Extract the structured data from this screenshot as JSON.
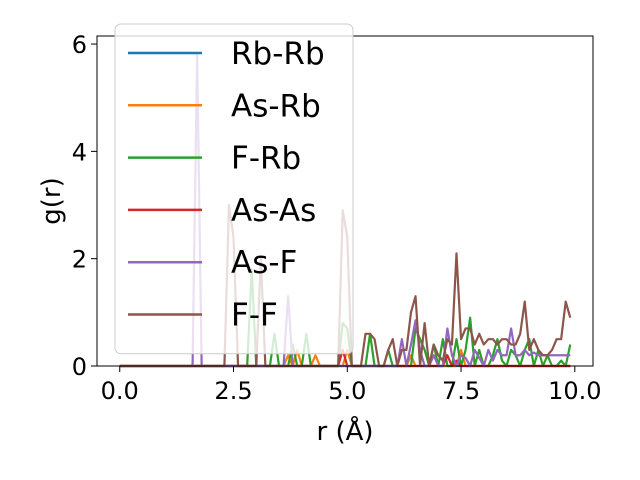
{
  "chart_data": {
    "type": "line",
    "xlabel": "r (Å)",
    "ylabel": "g(r)",
    "xlim": [
      -0.5,
      10.4
    ],
    "ylim": [
      0,
      6.15
    ],
    "xticks": [
      0.0,
      2.5,
      5.0,
      7.5,
      10.0
    ],
    "xtick_labels": [
      "0.0",
      "2.5",
      "5.0",
      "7.5",
      "10.0"
    ],
    "yticks": [
      0,
      2,
      4,
      6
    ],
    "ytick_labels": [
      "0",
      "2",
      "4",
      "6"
    ],
    "grid": false,
    "legend_position": "top-left",
    "x_start": 0.0,
    "x_step": 0.1,
    "series": [
      {
        "name": "Rb-Rb",
        "color": "#1f77b4",
        "values": [
          0,
          0,
          0,
          0,
          0,
          0,
          0,
          0,
          0,
          0,
          0,
          0,
          0,
          0,
          0,
          0,
          0,
          0,
          0,
          0,
          0,
          0,
          0,
          0,
          0,
          0,
          0,
          0,
          0,
          0,
          0,
          0,
          0,
          0,
          0,
          0,
          0,
          0,
          0,
          0,
          0,
          0,
          0,
          0,
          0,
          0,
          0,
          0,
          0,
          0,
          0,
          0,
          0,
          0,
          0,
          0,
          0,
          0,
          0,
          0,
          0,
          0,
          0,
          0,
          0,
          0,
          0,
          0,
          0,
          0,
          0,
          0,
          0,
          0,
          0,
          0,
          0,
          0,
          0,
          0,
          0,
          0,
          0,
          0,
          0,
          0,
          0,
          0,
          0,
          0,
          0,
          0,
          0,
          0,
          0,
          0,
          0,
          0,
          0,
          0
        ]
      },
      {
        "name": "As-Rb",
        "color": "#ff7f0e",
        "values": [
          0,
          0,
          0,
          0,
          0,
          0,
          0,
          0,
          0,
          0,
          0,
          0,
          0,
          0,
          0,
          0,
          0,
          0,
          0,
          0,
          0,
          0,
          0,
          0,
          0,
          0,
          0,
          0,
          0,
          0,
          0,
          0,
          0,
          0,
          0,
          0,
          0,
          0.2,
          0,
          0.3,
          0,
          0,
          0,
          0.2,
          0,
          0,
          0,
          0,
          0,
          0,
          0.3,
          0,
          0,
          0,
          0,
          0,
          0,
          0,
          0,
          0,
          0,
          0,
          0,
          0,
          0.2,
          0,
          0,
          0,
          0,
          0,
          0,
          0,
          0,
          0,
          0,
          0.3,
          0,
          0,
          0,
          0,
          0,
          0,
          0,
          0,
          0,
          0,
          0,
          0,
          0,
          0,
          0,
          0,
          0,
          0,
          0,
          0,
          0,
          0,
          0,
          0
        ]
      },
      {
        "name": "F-Rb",
        "color": "#2ca02c",
        "values": [
          0,
          0,
          0,
          0,
          0,
          0,
          0,
          0,
          0,
          0,
          0,
          0,
          0,
          0,
          0,
          0,
          0,
          0,
          0,
          0,
          0,
          0,
          0,
          0,
          0,
          0,
          0,
          0,
          0,
          1.8,
          0,
          0,
          0,
          0,
          0.6,
          0,
          0,
          0,
          0.4,
          0,
          0,
          0.6,
          0,
          0,
          0,
          0,
          0,
          0,
          0,
          0.8,
          0.7,
          0,
          0,
          0,
          0,
          0.6,
          0,
          0,
          0,
          0.3,
          0,
          0,
          0,
          0,
          0,
          0.7,
          0.5,
          0.3,
          0,
          0.4,
          0,
          0.5,
          0,
          0,
          0.5,
          0,
          0.3,
          0.9,
          0,
          0.3,
          0,
          0,
          0.2,
          0.5,
          0.1,
          0,
          0.3,
          0.2,
          0,
          0.3,
          0.5,
          0,
          0.3,
          0,
          0.2,
          0,
          0,
          0.1,
          0,
          0.4
        ]
      },
      {
        "name": "As-As",
        "color": "#d62728",
        "values": [
          0,
          0,
          0,
          0,
          0,
          0,
          0,
          0,
          0,
          0,
          0,
          0,
          0,
          0,
          0,
          0,
          0,
          0,
          0,
          0,
          0,
          0,
          0,
          0,
          0,
          0,
          0,
          0,
          0,
          0,
          0,
          0,
          0,
          0,
          0,
          0,
          0,
          0,
          0,
          0,
          0,
          0,
          0,
          0,
          0,
          0,
          0,
          0,
          0,
          0.3,
          0,
          0,
          0,
          0,
          0,
          0,
          0,
          0,
          0,
          0,
          0,
          0,
          0,
          0,
          0,
          0,
          0,
          0,
          0,
          0,
          0,
          0,
          0.2,
          0,
          0.1,
          0,
          0,
          0,
          0,
          0,
          0,
          0,
          0,
          0,
          0,
          0,
          0,
          0,
          0,
          0,
          0,
          0,
          0,
          0,
          0,
          0,
          0,
          0,
          0,
          0
        ]
      },
      {
        "name": "As-F",
        "color": "#9467bd",
        "values": [
          0,
          0,
          0,
          0,
          0,
          0,
          0,
          0,
          0,
          0,
          0,
          0,
          0,
          0,
          0,
          0,
          0,
          5.8,
          0,
          0,
          0,
          0,
          0,
          0,
          0,
          0,
          0,
          0,
          0,
          0,
          0,
          0,
          0,
          0,
          0,
          0,
          0,
          1.3,
          0,
          0,
          0,
          0,
          0,
          0,
          0,
          0,
          0,
          0,
          0,
          0,
          0,
          0,
          0,
          0,
          0,
          0,
          0,
          0,
          0,
          0,
          0,
          0,
          0.5,
          0,
          0.4,
          0.85,
          0.3,
          0,
          0,
          0.2,
          0,
          0,
          0.7,
          0.2,
          0,
          0.2,
          0.15,
          0,
          0.3,
          0.15,
          0,
          0.3,
          0.1,
          0.3,
          0.2,
          0.2,
          0.7,
          0.2,
          0.2,
          0.3,
          0.2,
          0.25,
          0.2,
          0.2,
          0.2,
          0.2,
          0.2,
          0.2,
          0.2,
          0.2
        ]
      },
      {
        "name": "F-F",
        "color": "#8c564b",
        "values": [
          0,
          0,
          0,
          0,
          0,
          0,
          0,
          0,
          0,
          0,
          0,
          0,
          0,
          0,
          0,
          0,
          0,
          0,
          0,
          0,
          0,
          0,
          0,
          0,
          3.0,
          2.4,
          0,
          0,
          0,
          0,
          0,
          2.0,
          0,
          0,
          0,
          0,
          0,
          0,
          0,
          0,
          0,
          0,
          0,
          0,
          0,
          0,
          0,
          0,
          0,
          2.9,
          2.4,
          0,
          0,
          0,
          0.6,
          0.6,
          0.5,
          0,
          0,
          0.3,
          0.5,
          0,
          0.3,
          0.3,
          1.0,
          1.3,
          0,
          0.8,
          0,
          0.4,
          0.2,
          0.1,
          0.5,
          0.4,
          2.1,
          0.5,
          0.7,
          0.7,
          0.4,
          0.6,
          0.4,
          0.5,
          0.5,
          0.4,
          0.5,
          0.5,
          0.4,
          0.4,
          0.6,
          1.2,
          0.3,
          0.5,
          0.3,
          0.2,
          0.2,
          0.3,
          0.5,
          0.5,
          1.2,
          0.9
        ]
      }
    ]
  }
}
